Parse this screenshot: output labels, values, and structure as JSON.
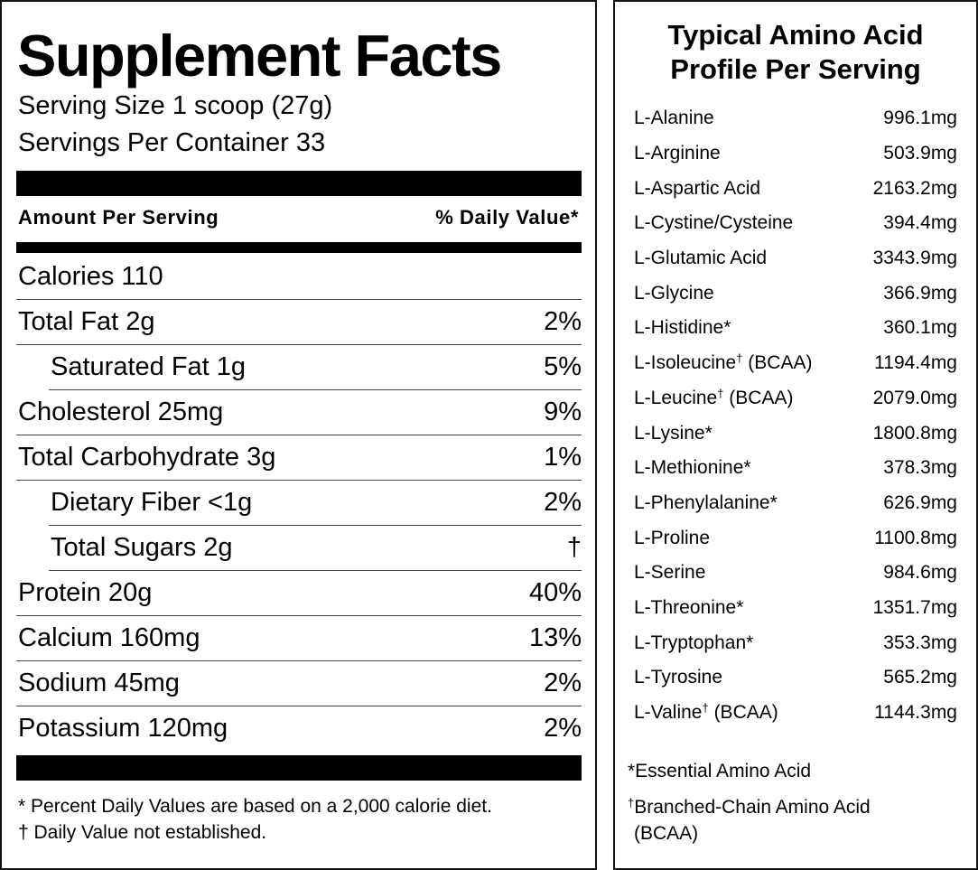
{
  "supplement_facts": {
    "title": "Supplement Facts",
    "serving_size": "Serving Size 1 scoop (27g)",
    "servings_per_container": "Servings Per Container 33",
    "header": {
      "amount": "Amount Per Serving",
      "daily_value": "% Daily Value*"
    },
    "rows": [
      {
        "label": "Calories 110"
      },
      {
        "label": "Total Fat 2g",
        "dv": "2%",
        "sub": [
          {
            "label": "Saturated Fat 1g",
            "dv": "5%"
          }
        ]
      },
      {
        "label": "Cholesterol 25mg",
        "dv": "9%"
      },
      {
        "label": "Total Carbohydrate 3g",
        "dv": "1%",
        "sub": [
          {
            "label": "Dietary Fiber <1g",
            "dv": "2%"
          },
          {
            "label": "Total Sugars 2g",
            "dv": "†"
          }
        ]
      },
      {
        "label": "Protein 20g",
        "dv": "40%"
      },
      {
        "label": "Calcium 160mg",
        "dv": "13%"
      },
      {
        "label": "Sodium 45mg",
        "dv": "2%"
      },
      {
        "label": "Potassium 120mg",
        "dv": "2%"
      }
    ],
    "footnotes": [
      "* Percent Daily Values are based on a 2,000 calorie diet.",
      "† Daily Value not established."
    ]
  },
  "amino_acid_profile": {
    "title": [
      "Typical Amino Acid",
      "Profile Per Serving"
    ],
    "rows": [
      {
        "name": "L-Alanine",
        "amount": "996.1mg"
      },
      {
        "name": "L-Arginine",
        "amount": "503.9mg"
      },
      {
        "name": "L-Aspartic Acid",
        "amount": "2163.2mg"
      },
      {
        "name": "L-Cystine/Cysteine",
        "amount": "394.4mg"
      },
      {
        "name": "L-Glutamic Acid",
        "amount": "3343.9mg"
      },
      {
        "name": "L-Glycine",
        "amount": "366.9mg"
      },
      {
        "name": "L-Histidine*",
        "amount": "360.1mg"
      },
      {
        "name": "L-Isoleucine",
        "mark": "†",
        "note": " (BCAA)",
        "amount": "1194.4mg"
      },
      {
        "name": "L-Leucine",
        "mark": "†",
        "note": " (BCAA)",
        "amount": "2079.0mg"
      },
      {
        "name": "L-Lysine*",
        "amount": "1800.8mg"
      },
      {
        "name": "L-Methionine*",
        "amount": "378.3mg"
      },
      {
        "name": "L-Phenylalanine*",
        "amount": "626.9mg"
      },
      {
        "name": "L-Proline",
        "amount": "1100.8mg"
      },
      {
        "name": "L-Serine",
        "amount": "984.6mg"
      },
      {
        "name": "L-Threonine*",
        "amount": "1351.7mg"
      },
      {
        "name": "L-Tryptophan*",
        "amount": "353.3mg"
      },
      {
        "name": "L-Tyrosine",
        "amount": "565.2mg"
      },
      {
        "name": "L-Valine",
        "mark": "†",
        "note": " (BCAA)",
        "amount": "1144.3mg"
      }
    ],
    "footnotes": [
      {
        "text": "*Essential Amino Acid"
      },
      {
        "mark": "†",
        "text": "Branched-Chain Amino Acid",
        "cont": "(BCAA)"
      }
    ]
  }
}
